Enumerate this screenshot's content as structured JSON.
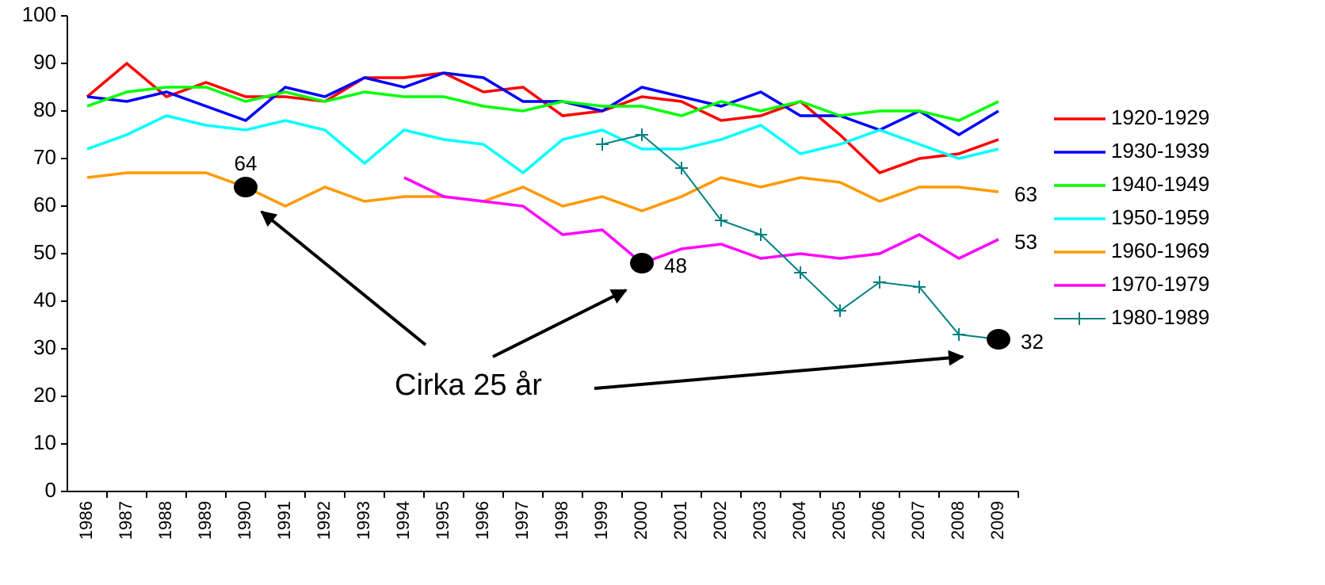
{
  "chart_data": {
    "type": "line",
    "categories": [
      "1986",
      "1987",
      "1988",
      "1989",
      "1990",
      "1991",
      "1992",
      "1993",
      "1994",
      "1995",
      "1996",
      "1997",
      "1998",
      "1999",
      "2000",
      "2001",
      "2002",
      "2003",
      "2004",
      "2005",
      "2006",
      "2007",
      "2008",
      "2009"
    ],
    "series": [
      {
        "name": "1920-1929",
        "color": "#ff0000",
        "values": [
          83,
          90,
          83,
          86,
          83,
          83,
          82,
          87,
          87,
          88,
          84,
          85,
          79,
          80,
          83,
          82,
          78,
          79,
          82,
          75,
          67,
          70,
          71,
          74
        ]
      },
      {
        "name": "1930-1939",
        "color": "#0000ff",
        "values": [
          83,
          82,
          84,
          81,
          78,
          85,
          83,
          87,
          85,
          88,
          87,
          82,
          82,
          80,
          85,
          83,
          81,
          84,
          79,
          79,
          76,
          80,
          75,
          80
        ]
      },
      {
        "name": "1940-1949",
        "color": "#00ff00",
        "values": [
          81,
          84,
          85,
          85,
          82,
          84,
          82,
          84,
          83,
          83,
          81,
          80,
          82,
          81,
          81,
          79,
          82,
          80,
          82,
          79,
          80,
          80,
          78,
          82
        ]
      },
      {
        "name": "1950-1959",
        "color": "#00ffff",
        "values": [
          72,
          75,
          79,
          77,
          76,
          78,
          76,
          69,
          76,
          74,
          73,
          67,
          74,
          76,
          72,
          72,
          74,
          77,
          71,
          73,
          76,
          73,
          70,
          72
        ]
      },
      {
        "name": "1960-1969",
        "color": "#ff9900",
        "values": [
          66,
          67,
          67,
          67,
          64,
          60,
          64,
          61,
          62,
          62,
          61,
          64,
          60,
          62,
          59,
          62,
          66,
          64,
          66,
          65,
          61,
          64,
          64,
          63
        ]
      },
      {
        "name": "1970-1979",
        "color": "#ff00ff",
        "values": [
          null,
          null,
          null,
          null,
          null,
          null,
          null,
          null,
          66,
          62,
          61,
          60,
          54,
          55,
          48,
          51,
          52,
          49,
          50,
          49,
          50,
          54,
          49,
          53
        ]
      },
      {
        "name": "1980-1989",
        "color": "#008080",
        "marker": "plus",
        "values": [
          null,
          null,
          null,
          null,
          null,
          null,
          null,
          null,
          null,
          null,
          null,
          null,
          null,
          73,
          75,
          68,
          57,
          54,
          46,
          38,
          44,
          43,
          33,
          32
        ]
      }
    ],
    "ylim": [
      0,
      100
    ],
    "yticks": [
      0,
      10,
      20,
      30,
      40,
      50,
      60,
      70,
      80,
      90,
      100
    ],
    "legend": "right",
    "point_labels": [
      {
        "x": "1990",
        "y": 64,
        "label": "64",
        "dot": true,
        "placement": "above"
      },
      {
        "x": "2000",
        "y": 48,
        "label": "48",
        "dot": true,
        "placement": "right"
      },
      {
        "x": "2009",
        "y": 32,
        "label": "32",
        "dot": true,
        "placement": "right"
      },
      {
        "x": "2009",
        "y": 63,
        "label": "63",
        "dot": false,
        "placement": "right"
      },
      {
        "x": "2009",
        "y": 53,
        "label": "53",
        "dot": false,
        "placement": "right"
      }
    ],
    "annotation": "Cirka 25 år"
  }
}
